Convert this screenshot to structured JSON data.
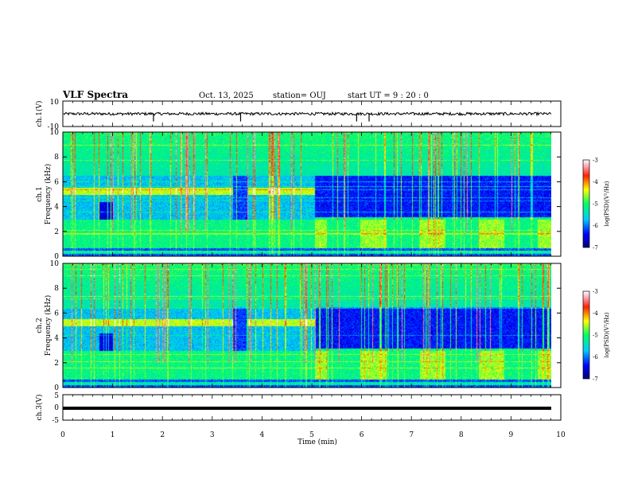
{
  "header": {
    "title": "VLF Spectra",
    "date": "Oct. 13, 2025",
    "station": "station= OUJ",
    "start": "start  UT  =   9 : 20 : 0"
  },
  "chart_data": [
    {
      "type": "line",
      "ylabel": "ch.1(V)",
      "ylim": [
        -10,
        10
      ],
      "yticks": [
        "10",
        "-10"
      ],
      "xlim": [
        0,
        10
      ],
      "baseline": 0,
      "spike_times_min": [
        1.82,
        3.57,
        5.9,
        6.15
      ]
    },
    {
      "type": "heatmap",
      "ylabel_channel": "ch.1",
      "ylabel": "Frequency (kHz)",
      "ylim": [
        0,
        10
      ],
      "yticks": [
        "0",
        "2",
        "4",
        "6",
        "8",
        "10"
      ],
      "xlim": [
        0,
        10
      ],
      "colorbar": {
        "label": "log(PSD)(V²/Hz)",
        "range": [
          -7,
          -3
        ],
        "ticks": [
          "-3",
          "-4",
          "-5",
          "-6",
          "-7"
        ]
      },
      "features": {
        "band_khz": [
          5.0,
          5.5
        ],
        "band_end_min": 5.05,
        "low_band_khz": [
          0.5,
          3.0
        ]
      }
    },
    {
      "type": "heatmap",
      "ylabel_channel": "ch.2",
      "ylabel": "Frequency (kHz)",
      "ylim": [
        0,
        10
      ],
      "yticks": [
        "0",
        "2",
        "4",
        "6",
        "8",
        "10"
      ],
      "xlim": [
        0,
        10
      ],
      "colorbar": {
        "label": "log(PSD)(V²/Hz)",
        "range": [
          -7,
          -3
        ],
        "ticks": [
          "-3",
          "-4",
          "-5",
          "-6",
          "-7"
        ]
      },
      "features": {
        "band_khz": [
          5.0,
          5.5
        ],
        "band_end_min": 5.05,
        "low_band_khz": [
          0.5,
          3.0
        ]
      }
    },
    {
      "type": "line",
      "ylabel": "ch.3(V)",
      "ylim": [
        -5,
        5
      ],
      "yticks": [
        "5",
        "0",
        "-5"
      ],
      "xlim": [
        0,
        10
      ],
      "value": -0.3,
      "xlabel": "Time (min)",
      "xticks": [
        "0",
        "1",
        "2",
        "3",
        "4",
        "5",
        "6",
        "7",
        "8",
        "9",
        "10"
      ]
    }
  ]
}
